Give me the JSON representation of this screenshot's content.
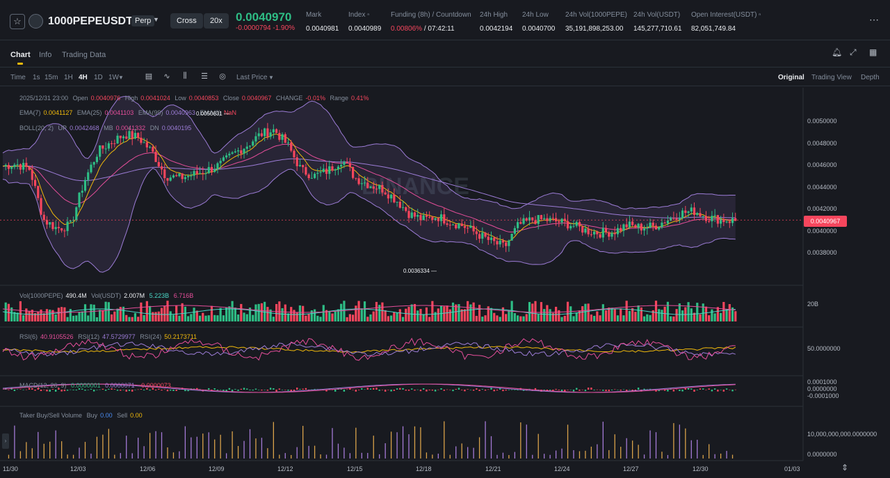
{
  "header": {
    "symbol": "1000PEPEUSDT",
    "contract_type": "Perp",
    "margin_mode": "Cross",
    "leverage": "20x",
    "last_price": "0.0040970",
    "change": "-0.0000794 -1.90%",
    "stats": [
      {
        "label": "Mark",
        "value": "0.0040981"
      },
      {
        "label": "Index",
        "value": "0.0040989"
      },
      {
        "label": "Funding (8h) / Countdown",
        "value_red": "0.00806%",
        "value": " / 07:42:11"
      },
      {
        "label": "24h High",
        "value": "0.0042194"
      },
      {
        "label": "24h Low",
        "value": "0.0040700"
      },
      {
        "label": "24h Vol(1000PEPE)",
        "value": "35,191,898,253.00"
      },
      {
        "label": "24h Vol(USDT)",
        "value": "145,277,710.61"
      },
      {
        "label": "Open Interest(USDT)",
        "value": "82,051,749.84"
      }
    ]
  },
  "tabs": [
    "Chart",
    "Info",
    "Trading Data"
  ],
  "toolbar": {
    "intervals": [
      "Time",
      "1s",
      "15m",
      "1H",
      "4H",
      "1D",
      "1W"
    ],
    "active_interval": "4H",
    "price_type": "Last Price",
    "views": [
      "Original",
      "Trading View",
      "Depth"
    ],
    "active_view": "Original"
  },
  "legend": {
    "ohlc": {
      "date": "2025/12/31 23:00",
      "open_l": "Open",
      "open": "0.0040976",
      "high_l": "High",
      "high": "0.0041024",
      "low_l": "Low",
      "low": "0.0040853",
      "close_l": "Close",
      "close": "0.0040967",
      "change_l": "CHANGE",
      "change": "-0.01%",
      "range_l": "Range",
      "range": "0.41%"
    },
    "ema": {
      "e7_l": "EMA(7)",
      "e7": "0.0041127",
      "e25_l": "EMA(25)",
      "e25": "0.0041103",
      "e99_l": "EMA(99)",
      "e99": "0.0040963",
      "e0_l": "EMA(0)",
      "e0": "NaN"
    },
    "boll": {
      "label": "BOLL(20, 2)",
      "up_l": "UP",
      "up": "0.0042468",
      "mb_l": "MB",
      "mb": "0.0041332",
      "dn_l": "DN",
      "dn": "0.0040195"
    },
    "vol": {
      "l1": "Vol(1000PEPE)",
      "v1": "490.4M",
      "l2": "Vol(USDT)",
      "v2": "2.007M",
      "v3": "5.223B",
      "v4": "6.716B"
    },
    "rsi": {
      "l6": "RSI(6)",
      "v6": "40.9105526",
      "l12": "RSI(12)",
      "v12": "47.5729977",
      "l24": "RSI(24)",
      "v24": "50.2173711"
    },
    "macd": {
      "label": "MACD(12, 26, 9)",
      "v1": "0.0000001",
      "v2": "0.0000071",
      "v3": "-0.0000073"
    },
    "taker": {
      "label": "Taker Buy/Sell Volume",
      "buy_l": "Buy",
      "buy": "0.00",
      "sell_l": "Sell",
      "sell": "0.00"
    }
  },
  "price_axis": [
    "0.0050000",
    "0.0048000",
    "0.0046000",
    "0.0044000",
    "0.0042000",
    "0.0040000",
    "0.0038000"
  ],
  "current_price_tag": "0.0040967",
  "annotations": {
    "high": "0.0050631",
    "low": "0.0036334"
  },
  "vol_axis": "20B",
  "rsi_axis": "50.0000000",
  "macd_axis": [
    "0.0001000",
    "0.0000000",
    "-0.0001000"
  ],
  "taker_axis": [
    "10,000,000,000.0000000",
    "0.0000000"
  ],
  "dates": [
    "11/30",
    "12/03",
    "12/06",
    "12/09",
    "12/12",
    "12/15",
    "12/18",
    "12/21",
    "12/24",
    "12/27",
    "12/30",
    "01/03"
  ],
  "watermark": "BINANCE",
  "colors": {
    "up": "#2ebd85",
    "down": "#f6465d",
    "ema7": "#f0b90b",
    "ema25": "#e54e9a",
    "ema99": "#9c7cd6",
    "boll": "#9c7cd6",
    "accent": "#f0b90b"
  },
  "chart_data": {
    "type": "candlestick",
    "title": "",
    "interval": "4H",
    "close": [
      0.00459,
      0.00461,
      0.00456,
      0.0041,
      0.00402,
      0.00405,
      0.00445,
      0.00472,
      0.00481,
      0.00488,
      0.00485,
      0.00472,
      0.0045,
      0.00448,
      0.00451,
      0.00455,
      0.0046,
      0.0047,
      0.00478,
      0.00488,
      0.00492,
      0.00478,
      0.00455,
      0.0045,
      0.00455,
      0.00465,
      0.00448,
      0.00442,
      0.00438,
      0.00428,
      0.00415,
      0.0041,
      0.00413,
      0.00408,
      0.00404,
      0.00397,
      0.0039,
      0.00385,
      0.00405,
      0.0041,
      0.0041,
      0.00408,
      0.00405,
      0.004,
      0.00398,
      0.00399,
      0.00405,
      0.00403,
      0.00404,
      0.0041,
      0.00416,
      0.00418,
      0.00412,
      0.0041,
      0.00409
    ]
  }
}
